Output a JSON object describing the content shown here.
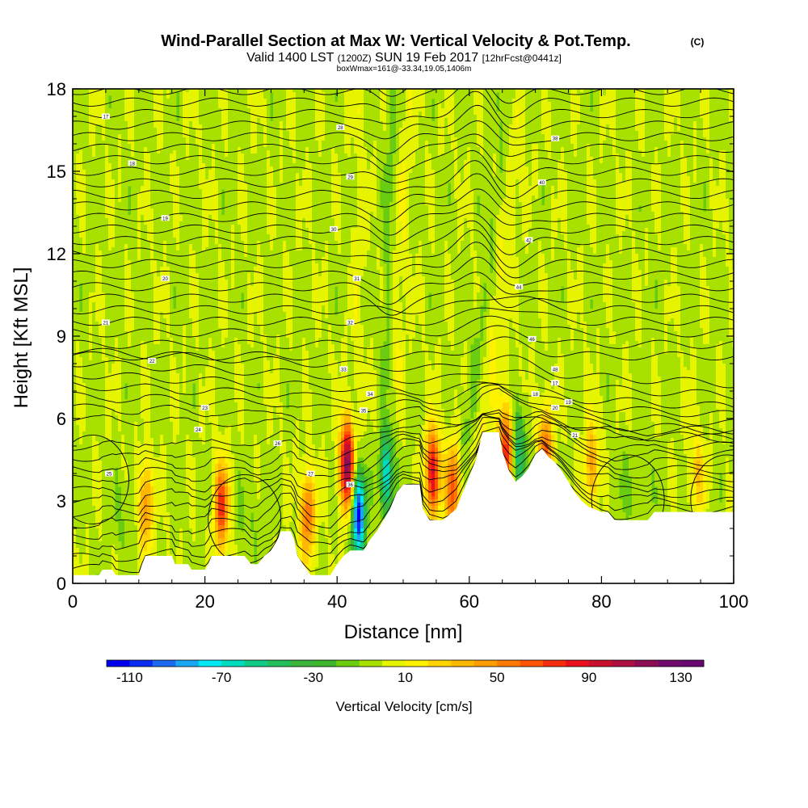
{
  "chart_data": {
    "type": "heatmap",
    "title": "Wind-Parallel Section at Max W: Vertical Velocity & Pot.Temp.",
    "title_tag": "(C)",
    "subtitle_parts": [
      "Valid 1400 LST",
      "(1200Z)",
      "SUN 19 Feb 2017",
      "[12hrFcst@0441z]"
    ],
    "subtitle2": "boxWmax=161@-33.34,19.05,1406m",
    "xlabel": "Distance [nm]",
    "ylabel": "Height [Kft MSL]",
    "xlim": [
      0,
      100
    ],
    "ylim": [
      0,
      18
    ],
    "x_ticks": [
      0,
      20,
      40,
      60,
      80,
      100
    ],
    "y_ticks": [
      0,
      3,
      6,
      9,
      12,
      15,
      18
    ],
    "colorbar": {
      "label": "Vertical Velocity [cm/s]",
      "range": [
        -120,
        140
      ],
      "tick_values": [
        -110,
        -70,
        -30,
        10,
        50,
        90,
        130
      ],
      "tick_labels": [
        "-110",
        "-70",
        "-30",
        "10",
        "50",
        "90",
        "130"
      ],
      "colors": [
        "#0000ee",
        "#0a2ef0",
        "#1c6af0",
        "#1aa6f2",
        "#00e8f4",
        "#00dcc0",
        "#10cc86",
        "#22c05c",
        "#3ab43a",
        "#3cb82a",
        "#6ccc10",
        "#a8e000",
        "#e6f400",
        "#fff200",
        "#ffd400",
        "#ffb800",
        "#ff9c00",
        "#ff7a00",
        "#ff5400",
        "#f42e0c",
        "#e8101c",
        "#c8102e",
        "#ac1040",
        "#8c0c56",
        "#700a6c",
        "#680870"
      ]
    },
    "updraft_cores": [
      {
        "x": 11,
        "z": 2.8,
        "w": 55
      },
      {
        "x": 22.5,
        "z": 2.8,
        "w": 75
      },
      {
        "x": 35.5,
        "z": 2.5,
        "w": 65
      },
      {
        "x": 41.5,
        "z": 4.3,
        "w": 120
      },
      {
        "x": 54.5,
        "z": 4.0,
        "w": 95
      },
      {
        "x": 57.5,
        "z": 3.4,
        "w": 70
      },
      {
        "x": 65.5,
        "z": 4.8,
        "w": 80
      },
      {
        "x": 71.5,
        "z": 4.8,
        "w": 65
      },
      {
        "x": 78.5,
        "z": 4.3,
        "w": 45
      },
      {
        "x": 94.5,
        "z": 4.0,
        "w": 30
      }
    ],
    "downdraft_cores": [
      {
        "x": 43.2,
        "z": 2.5,
        "w": -115
      },
      {
        "x": 47.5,
        "z": 4.0,
        "w": -70
      },
      {
        "x": 67.5,
        "z": 4.7,
        "w": -50
      }
    ],
    "theta_contour_labels": [
      "17",
      "18",
      "19",
      "20",
      "21",
      "22",
      "23",
      "24",
      "25",
      "26",
      "27",
      "28",
      "29",
      "30",
      "31",
      "32",
      "33",
      "34",
      "35",
      "36",
      "38",
      "40",
      "42",
      "44",
      "46",
      "48"
    ]
  }
}
